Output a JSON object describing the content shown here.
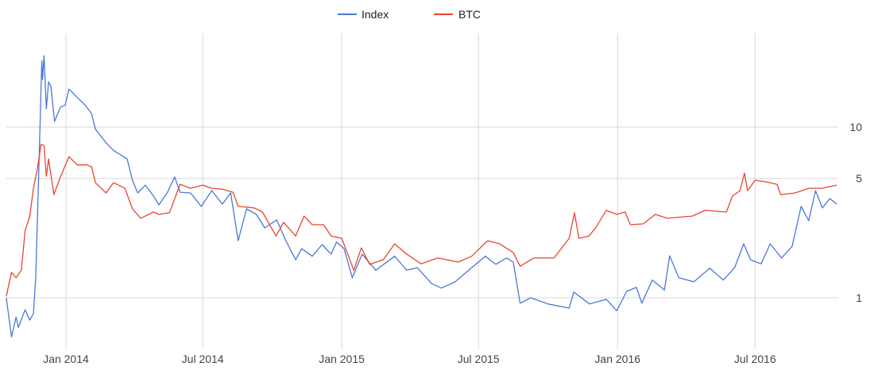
{
  "chart_data": {
    "type": "line",
    "title": "",
    "xlabel": "",
    "ylabel": "",
    "y_scale": "log",
    "ylim": [
      0.55,
      30
    ],
    "xlim": [
      "2013-10-14",
      "2016-10-17"
    ],
    "grid": true,
    "legend_position": "top",
    "y_ticks": [
      {
        "value": 1,
        "label": "1"
      },
      {
        "value": 5,
        "label": "5"
      },
      {
        "value": 10,
        "label": "10"
      }
    ],
    "x_ticks": [
      {
        "date": "2014-01-01",
        "label": "Jan 2014"
      },
      {
        "date": "2014-07-01",
        "label": "Jul 2014"
      },
      {
        "date": "2015-01-01",
        "label": "Jan 2015"
      },
      {
        "date": "2015-07-01",
        "label": "Jul 2015"
      },
      {
        "date": "2016-01-01",
        "label": "Jan 2016"
      },
      {
        "date": "2016-07-01",
        "label": "Jul 2016"
      }
    ],
    "series": [
      {
        "name": "Index",
        "color": "#4a78d8",
        "points": [
          [
            "2013-10-14",
            1.0
          ],
          [
            "2013-10-21",
            0.59
          ],
          [
            "2013-10-27",
            0.77
          ],
          [
            "2013-10-30",
            0.67
          ],
          [
            "2013-11-08",
            0.85
          ],
          [
            "2013-11-14",
            0.74
          ],
          [
            "2013-11-19",
            0.81
          ],
          [
            "2013-11-22",
            1.31
          ],
          [
            "2013-11-27",
            7.8
          ],
          [
            "2013-11-30",
            24.4
          ],
          [
            "2013-12-01",
            19
          ],
          [
            "2013-12-03",
            26.2
          ],
          [
            "2013-12-06",
            12.8
          ],
          [
            "2013-12-09",
            18.4
          ],
          [
            "2013-12-12",
            17.4
          ],
          [
            "2013-12-17",
            10.8
          ],
          [
            "2013-12-25",
            13.1
          ],
          [
            "2013-12-31",
            13.4
          ],
          [
            "2014-01-05",
            16.7
          ],
          [
            "2014-01-16",
            14.9
          ],
          [
            "2014-01-26",
            13.5
          ],
          [
            "2014-02-04",
            12.0
          ],
          [
            "2014-02-09",
            9.7
          ],
          [
            "2014-02-23",
            8.1
          ],
          [
            "2014-03-05",
            7.3
          ],
          [
            "2014-03-23",
            6.5
          ],
          [
            "2014-03-30",
            4.88
          ],
          [
            "2014-04-06",
            4.11
          ],
          [
            "2014-04-16",
            4.57
          ],
          [
            "2014-04-27",
            3.94
          ],
          [
            "2014-05-04",
            3.5
          ],
          [
            "2014-05-15",
            4.11
          ],
          [
            "2014-05-25",
            5.1
          ],
          [
            "2014-06-01",
            4.15
          ],
          [
            "2014-06-15",
            4.11
          ],
          [
            "2014-06-29",
            3.43
          ],
          [
            "2014-07-13",
            4.24
          ],
          [
            "2014-07-27",
            3.54
          ],
          [
            "2014-08-07",
            4.11
          ],
          [
            "2014-08-17",
            2.16
          ],
          [
            "2014-08-28",
            3.32
          ],
          [
            "2014-09-10",
            3.08
          ],
          [
            "2014-09-21",
            2.57
          ],
          [
            "2014-10-07",
            2.86
          ],
          [
            "2014-10-19",
            2.16
          ],
          [
            "2014-11-01",
            1.67
          ],
          [
            "2014-11-09",
            1.94
          ],
          [
            "2014-11-23",
            1.75
          ],
          [
            "2014-12-06",
            2.05
          ],
          [
            "2014-12-18",
            1.8
          ],
          [
            "2014-12-25",
            2.12
          ],
          [
            "2015-01-04",
            1.94
          ],
          [
            "2015-01-15",
            1.31
          ],
          [
            "2015-01-28",
            1.8
          ],
          [
            "2015-02-15",
            1.45
          ],
          [
            "2015-03-12",
            1.75
          ],
          [
            "2015-03-28",
            1.45
          ],
          [
            "2015-04-11",
            1.5
          ],
          [
            "2015-04-30",
            1.21
          ],
          [
            "2015-05-13",
            1.14
          ],
          [
            "2015-05-31",
            1.24
          ],
          [
            "2015-06-22",
            1.5
          ],
          [
            "2015-07-10",
            1.75
          ],
          [
            "2015-07-24",
            1.57
          ],
          [
            "2015-08-07",
            1.71
          ],
          [
            "2015-08-16",
            1.62
          ],
          [
            "2015-08-25",
            0.93
          ],
          [
            "2015-09-08",
            1.0
          ],
          [
            "2015-10-01",
            0.92
          ],
          [
            "2015-10-29",
            0.87
          ],
          [
            "2015-11-04",
            1.08
          ],
          [
            "2015-11-25",
            0.92
          ],
          [
            "2015-12-17",
            0.98
          ],
          [
            "2015-12-31",
            0.84
          ],
          [
            "2016-01-13",
            1.09
          ],
          [
            "2016-01-26",
            1.15
          ],
          [
            "2016-02-02",
            0.93
          ],
          [
            "2016-02-16",
            1.27
          ],
          [
            "2016-03-03",
            1.11
          ],
          [
            "2016-03-10",
            1.76
          ],
          [
            "2016-03-22",
            1.31
          ],
          [
            "2016-04-11",
            1.24
          ],
          [
            "2016-05-02",
            1.49
          ],
          [
            "2016-05-20",
            1.27
          ],
          [
            "2016-06-04",
            1.5
          ],
          [
            "2016-06-16",
            2.07
          ],
          [
            "2016-06-25",
            1.67
          ],
          [
            "2016-07-09",
            1.58
          ],
          [
            "2016-07-21",
            2.07
          ],
          [
            "2016-08-05",
            1.71
          ],
          [
            "2016-08-19",
            2.0
          ],
          [
            "2016-08-31",
            3.43
          ],
          [
            "2016-09-10",
            2.83
          ],
          [
            "2016-09-19",
            4.24
          ],
          [
            "2016-09-28",
            3.36
          ],
          [
            "2016-10-08",
            3.81
          ],
          [
            "2016-10-17",
            3.54
          ]
        ]
      },
      {
        "name": "BTC",
        "color": "#e8472e",
        "points": [
          [
            "2013-10-14",
            1.02
          ],
          [
            "2013-10-21",
            1.41
          ],
          [
            "2013-10-27",
            1.31
          ],
          [
            "2013-11-03",
            1.45
          ],
          [
            "2013-11-08",
            2.48
          ],
          [
            "2013-11-14",
            2.98
          ],
          [
            "2013-11-19",
            4.38
          ],
          [
            "2013-11-24",
            5.66
          ],
          [
            "2013-11-29",
            7.9
          ],
          [
            "2013-12-03",
            7.8
          ],
          [
            "2013-12-06",
            5.15
          ],
          [
            "2013-12-09",
            6.5
          ],
          [
            "2013-12-16",
            4.02
          ],
          [
            "2013-12-25",
            5.15
          ],
          [
            "2014-01-05",
            6.7
          ],
          [
            "2014-01-16",
            6.0
          ],
          [
            "2014-01-29",
            6.0
          ],
          [
            "2014-02-04",
            5.85
          ],
          [
            "2014-02-09",
            4.72
          ],
          [
            "2014-02-23",
            4.11
          ],
          [
            "2014-03-05",
            4.72
          ],
          [
            "2014-03-20",
            4.38
          ],
          [
            "2014-03-30",
            3.32
          ],
          [
            "2014-04-10",
            2.92
          ],
          [
            "2014-04-27",
            3.18
          ],
          [
            "2014-05-04",
            3.08
          ],
          [
            "2014-05-18",
            3.15
          ],
          [
            "2014-06-01",
            4.62
          ],
          [
            "2014-06-15",
            4.38
          ],
          [
            "2014-07-01",
            4.57
          ],
          [
            "2014-07-13",
            4.38
          ],
          [
            "2014-07-27",
            4.33
          ],
          [
            "2014-08-10",
            4.15
          ],
          [
            "2014-08-17",
            3.43
          ],
          [
            "2014-09-07",
            3.36
          ],
          [
            "2014-09-18",
            3.18
          ],
          [
            "2014-10-06",
            2.3
          ],
          [
            "2014-10-16",
            2.77
          ],
          [
            "2014-11-01",
            2.3
          ],
          [
            "2014-11-12",
            3.01
          ],
          [
            "2014-11-23",
            2.68
          ],
          [
            "2014-12-08",
            2.68
          ],
          [
            "2014-12-18",
            2.3
          ],
          [
            "2015-01-01",
            2.23
          ],
          [
            "2015-01-17",
            1.45
          ],
          [
            "2015-01-27",
            1.96
          ],
          [
            "2015-02-07",
            1.57
          ],
          [
            "2015-02-25",
            1.67
          ],
          [
            "2015-03-12",
            2.07
          ],
          [
            "2015-03-28",
            1.8
          ],
          [
            "2015-04-16",
            1.58
          ],
          [
            "2015-05-08",
            1.71
          ],
          [
            "2015-06-04",
            1.62
          ],
          [
            "2015-06-22",
            1.75
          ],
          [
            "2015-07-13",
            2.16
          ],
          [
            "2015-07-29",
            2.07
          ],
          [
            "2015-08-16",
            1.84
          ],
          [
            "2015-08-25",
            1.53
          ],
          [
            "2015-09-12",
            1.71
          ],
          [
            "2015-10-09",
            1.71
          ],
          [
            "2015-10-29",
            2.23
          ],
          [
            "2015-11-05",
            3.15
          ],
          [
            "2015-11-11",
            2.23
          ],
          [
            "2015-11-24",
            2.3
          ],
          [
            "2015-12-03",
            2.57
          ],
          [
            "2015-12-17",
            3.25
          ],
          [
            "2015-12-31",
            3.08
          ],
          [
            "2016-01-11",
            3.18
          ],
          [
            "2016-01-18",
            2.68
          ],
          [
            "2016-02-04",
            2.71
          ],
          [
            "2016-02-20",
            3.08
          ],
          [
            "2016-03-07",
            2.92
          ],
          [
            "2016-04-09",
            3.01
          ],
          [
            "2016-04-26",
            3.25
          ],
          [
            "2016-05-24",
            3.18
          ],
          [
            "2016-06-01",
            3.94
          ],
          [
            "2016-06-11",
            4.24
          ],
          [
            "2016-06-17",
            5.37
          ],
          [
            "2016-06-21",
            4.24
          ],
          [
            "2016-07-01",
            4.88
          ],
          [
            "2016-07-16",
            4.77
          ],
          [
            "2016-07-30",
            4.62
          ],
          [
            "2016-08-04",
            4.02
          ],
          [
            "2016-08-23",
            4.11
          ],
          [
            "2016-09-10",
            4.38
          ],
          [
            "2016-09-28",
            4.38
          ],
          [
            "2016-10-17",
            4.57
          ]
        ]
      }
    ]
  }
}
